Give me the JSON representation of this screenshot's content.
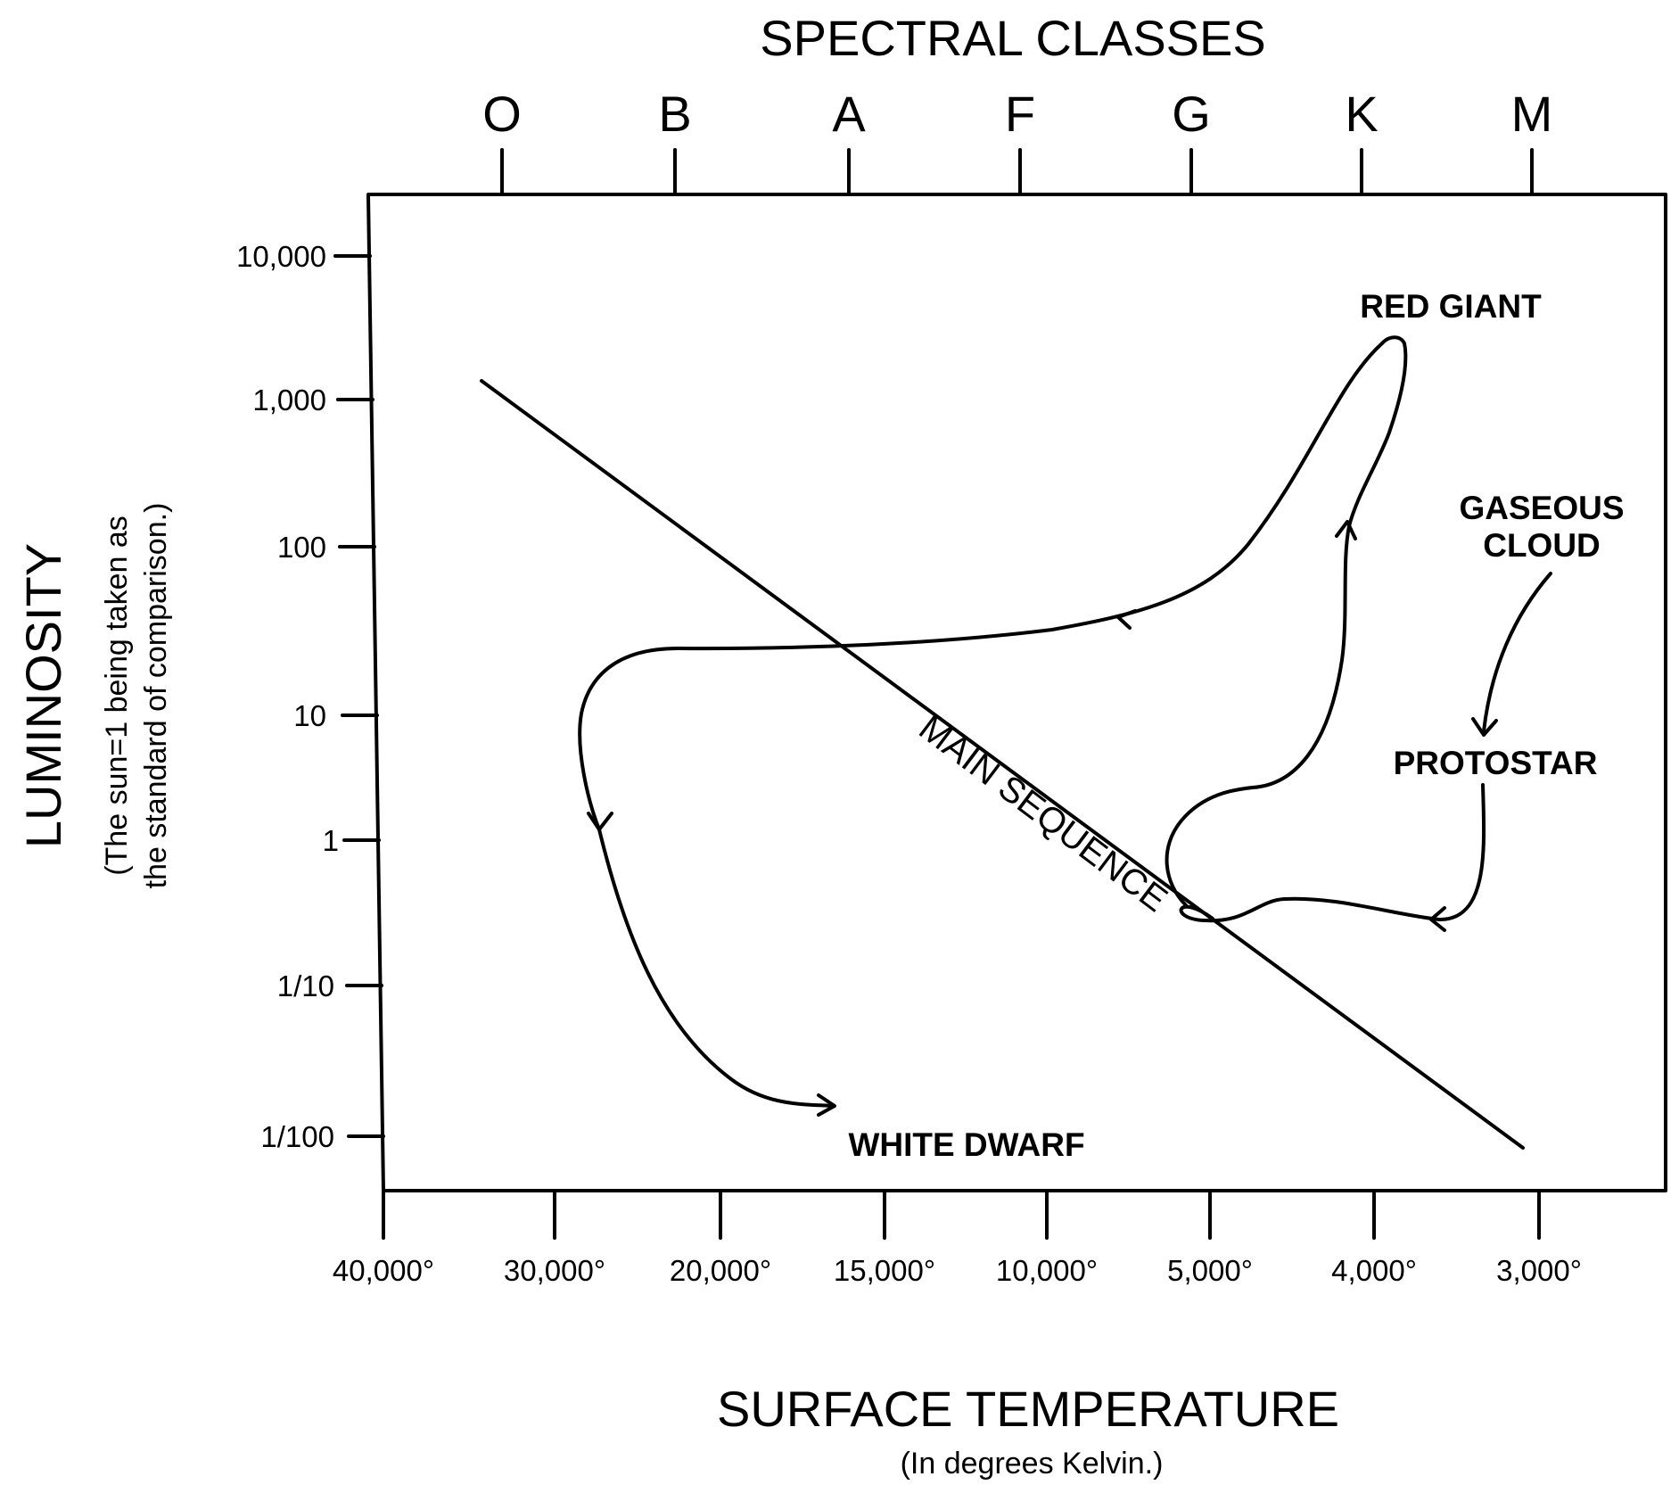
{
  "top_axis": {
    "title": "SPECTRAL CLASSES",
    "classes": [
      "O",
      "B",
      "A",
      "F",
      "G",
      "K",
      "M"
    ]
  },
  "y_axis": {
    "title": "LUMINOSITY",
    "subtitle_line1": "(The sun=1 being taken as",
    "subtitle_line2": "the standard of comparison.)",
    "ticks": [
      "10,000",
      "1,000",
      "100",
      "10",
      "1",
      "1/10",
      "1/100"
    ]
  },
  "x_axis": {
    "title": "SURFACE TEMPERATURE",
    "subtitle": "(In degrees Kelvin.)",
    "ticks": [
      "40,000°",
      "30,000°",
      "20,000°",
      "15,000°",
      "10,000°",
      "5,000°",
      "4,000°",
      "3,000°"
    ]
  },
  "labels": {
    "red_giant": "RED GIANT",
    "gaseous_cloud_line1": "GASEOUS",
    "gaseous_cloud_line2": "CLOUD",
    "protostar": "PROTOSTAR",
    "white_dwarf": "WHITE DWARF",
    "main_sequence": "MAIN SEQUENCE"
  },
  "colors": {
    "ink": "#000000",
    "background": "#ffffff"
  }
}
